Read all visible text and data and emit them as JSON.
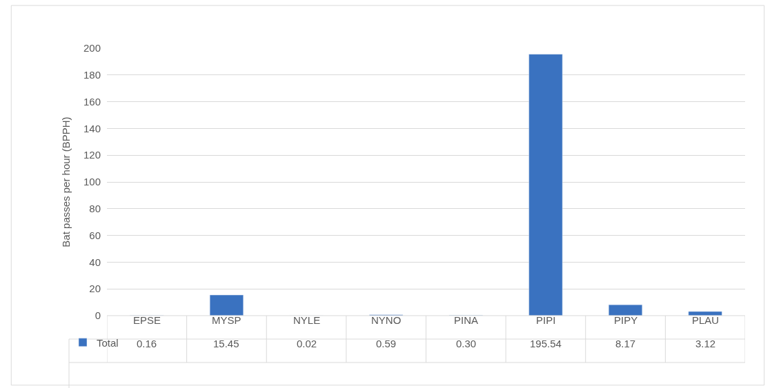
{
  "chart_data": {
    "type": "bar",
    "ylabel": "Bat passes per hour (BPPH)",
    "categories": [
      "EPSE",
      "MYSP",
      "NYLE",
      "NYNO",
      "PINA",
      "PIPI",
      "PIPY",
      "PLAU"
    ],
    "series": [
      {
        "name": "Total",
        "color": "#3a72c0",
        "values": [
          0.16,
          15.45,
          0.02,
          0.59,
          0.3,
          195.54,
          8.17,
          3.12
        ],
        "value_labels": [
          "0.16",
          "15.45",
          "0.02",
          "0.59",
          "0.30",
          "195.54",
          "8.17",
          "3.12"
        ]
      }
    ],
    "ylim": [
      0,
      200
    ],
    "yticks": [
      0,
      20,
      40,
      60,
      80,
      100,
      120,
      140,
      160,
      180,
      200
    ],
    "grid": "y",
    "legend": "bottom left"
  }
}
